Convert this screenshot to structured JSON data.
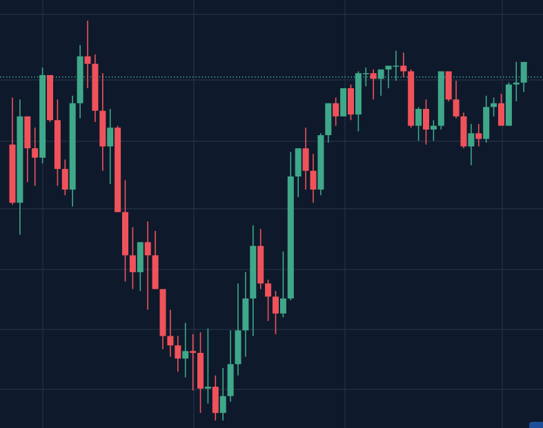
{
  "colors": {
    "background": "#0e1a2b",
    "grid": "#243246",
    "up": "#3fa88a",
    "down": "#f0525b",
    "price_line": "#46b8a4",
    "corner_tab": "#1e4e9a"
  },
  "chart_data": {
    "type": "candlestick",
    "title": "",
    "xlabel": "",
    "ylabel": "",
    "ylim": [
      0,
      100
    ],
    "grid": true,
    "axis_labels_visible": false,
    "current_price_line": {
      "value": 85.0,
      "style": "dotted"
    },
    "series": [
      {
        "values": [
          {
            "o": 67.0,
            "h": 79.5,
            "l": 51.0,
            "c": 51.5
          },
          {
            "o": 51.5,
            "h": 79.0,
            "l": 43.0,
            "c": 74.5
          },
          {
            "o": 74.5,
            "h": 74.5,
            "l": 57.0,
            "c": 66.0
          },
          {
            "o": 66.0,
            "h": 71.5,
            "l": 56.0,
            "c": 63.5
          },
          {
            "o": 63.5,
            "h": 87.5,
            "l": 62.0,
            "c": 85.5
          },
          {
            "o": 85.5,
            "h": 85.5,
            "l": 73.0,
            "c": 73.5
          },
          {
            "o": 73.5,
            "h": 79.0,
            "l": 56.0,
            "c": 60.5
          },
          {
            "o": 60.5,
            "h": 63.0,
            "l": 53.5,
            "c": 55.0
          },
          {
            "o": 55.0,
            "h": 80.0,
            "l": 50.5,
            "c": 78.0
          },
          {
            "o": 78.0,
            "h": 93.5,
            "l": 74.0,
            "c": 90.5
          },
          {
            "o": 90.5,
            "h": 100.0,
            "l": 82.0,
            "c": 88.5
          },
          {
            "o": 88.5,
            "h": 91.0,
            "l": 73.0,
            "c": 76.0
          },
          {
            "o": 76.0,
            "h": 86.0,
            "l": 60.0,
            "c": 66.5
          },
          {
            "o": 66.5,
            "h": 76.5,
            "l": 56.5,
            "c": 71.5
          },
          {
            "o": 71.5,
            "h": 72.0,
            "l": 49.5,
            "c": 49.0
          },
          {
            "o": 49.0,
            "h": 57.5,
            "l": 30.5,
            "c": 37.5
          },
          {
            "o": 37.5,
            "h": 45.0,
            "l": 28.5,
            "c": 33.0
          },
          {
            "o": 33.0,
            "h": 39.5,
            "l": 28.0,
            "c": 41.0
          },
          {
            "o": 41.0,
            "h": 46.5,
            "l": 23.0,
            "c": 37.5
          },
          {
            "o": 37.5,
            "h": 44.0,
            "l": 31.0,
            "c": 28.5
          },
          {
            "o": 28.5,
            "h": 28.5,
            "l": 12.5,
            "c": 16.0
          },
          {
            "o": 16.0,
            "h": 23.0,
            "l": 10.5,
            "c": 13.5
          },
          {
            "o": 13.5,
            "h": 16.0,
            "l": 6.5,
            "c": 10.0
          },
          {
            "o": 10.0,
            "h": 19.5,
            "l": 5.0,
            "c": 12.0
          },
          {
            "o": 12.0,
            "h": 16.5,
            "l": 1.5,
            "c": 11.5
          },
          {
            "o": 11.5,
            "h": 17.0,
            "l": -4.5,
            "c": 2.0
          },
          {
            "o": 2.0,
            "h": 18.0,
            "l": -2.0,
            "c": 2.5
          },
          {
            "o": 2.5,
            "h": 5.5,
            "l": -6.5,
            "c": -4.5
          },
          {
            "o": -4.5,
            "h": 7.5,
            "l": -6.5,
            "c": 0.0
          },
          {
            "o": 0.0,
            "h": 17.5,
            "l": -1.5,
            "c": 8.5
          },
          {
            "o": 8.5,
            "h": 30.0,
            "l": 5.5,
            "c": 17.5
          },
          {
            "o": 17.5,
            "h": 33.0,
            "l": 10.5,
            "c": 26.0
          },
          {
            "o": 26.0,
            "h": 45.5,
            "l": 16.0,
            "c": 40.0
          },
          {
            "o": 40.0,
            "h": 44.5,
            "l": 28.5,
            "c": 30.0
          },
          {
            "o": 30.0,
            "h": 31.0,
            "l": 20.0,
            "c": 26.5
          },
          {
            "o": 26.5,
            "h": 28.0,
            "l": 16.5,
            "c": 22.0
          },
          {
            "o": 22.0,
            "h": 38.5,
            "l": 21.0,
            "c": 26.0
          },
          {
            "o": 26.0,
            "h": 65.0,
            "l": 25.5,
            "c": 58.5
          },
          {
            "o": 58.5,
            "h": 65.0,
            "l": 53.0,
            "c": 66.0
          },
          {
            "o": 66.0,
            "h": 71.5,
            "l": 55.0,
            "c": 60.0
          },
          {
            "o": 60.0,
            "h": 64.5,
            "l": 51.5,
            "c": 55.0
          },
          {
            "o": 55.0,
            "h": 70.0,
            "l": 53.5,
            "c": 69.5
          },
          {
            "o": 69.5,
            "h": 78.0,
            "l": 67.5,
            "c": 78.0
          },
          {
            "o": 78.0,
            "h": 79.5,
            "l": 72.0,
            "c": 74.5
          },
          {
            "o": 74.5,
            "h": 82.0,
            "l": 74.5,
            "c": 82.0
          },
          {
            "o": 82.0,
            "h": 83.0,
            "l": 73.5,
            "c": 75.0
          },
          {
            "o": 75.0,
            "h": 86.5,
            "l": 70.5,
            "c": 86.0
          },
          {
            "o": 86.0,
            "h": 87.5,
            "l": 82.5,
            "c": 86.0
          },
          {
            "o": 86.0,
            "h": 87.0,
            "l": 79.0,
            "c": 84.5
          },
          {
            "o": 84.5,
            "h": 86.5,
            "l": 80.0,
            "c": 87.0
          },
          {
            "o": 87.0,
            "h": 88.0,
            "l": 82.0,
            "c": 88.0
          },
          {
            "o": 88.0,
            "h": 92.0,
            "l": 84.0,
            "c": 88.0
          },
          {
            "o": 88.0,
            "h": 91.5,
            "l": 85.0,
            "c": 86.5
          },
          {
            "o": 86.5,
            "h": 87.0,
            "l": 71.5,
            "c": 72.0
          },
          {
            "o": 72.0,
            "h": 77.0,
            "l": 68.0,
            "c": 76.5
          },
          {
            "o": 76.5,
            "h": 79.0,
            "l": 67.0,
            "c": 71.0
          },
          {
            "o": 71.0,
            "h": 73.5,
            "l": 68.0,
            "c": 72.0
          },
          {
            "o": 72.0,
            "h": 85.5,
            "l": 71.0,
            "c": 86.5
          },
          {
            "o": 86.5,
            "h": 86.0,
            "l": 78.5,
            "c": 79.0
          },
          {
            "o": 79.0,
            "h": 84.0,
            "l": 74.0,
            "c": 74.5
          },
          {
            "o": 74.5,
            "h": 75.5,
            "l": 66.0,
            "c": 66.5
          },
          {
            "o": 66.5,
            "h": 72.5,
            "l": 61.5,
            "c": 70.0
          },
          {
            "o": 70.0,
            "h": 72.5,
            "l": 66.5,
            "c": 68.5
          },
          {
            "o": 68.5,
            "h": 80.0,
            "l": 67.5,
            "c": 77.0
          },
          {
            "o": 77.0,
            "h": 79.5,
            "l": 74.5,
            "c": 78.0
          },
          {
            "o": 78.0,
            "h": 80.5,
            "l": 73.0,
            "c": 72.0
          },
          {
            "o": 72.0,
            "h": 83.5,
            "l": 73.0,
            "c": 83.0
          },
          {
            "o": 83.0,
            "h": 89.0,
            "l": 78.5,
            "c": 83.5
          },
          {
            "o": 83.5,
            "h": 88.5,
            "l": 81.0,
            "c": 89.0
          }
        ]
      }
    ]
  }
}
